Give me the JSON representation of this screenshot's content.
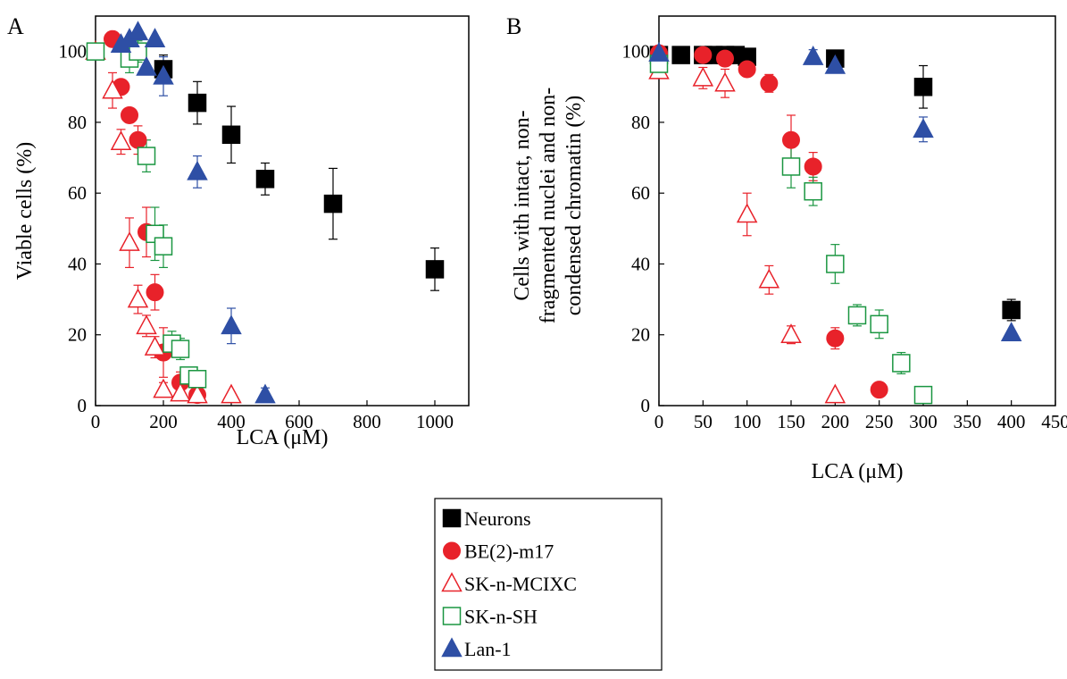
{
  "chart_data": [
    {
      "type": "scatter",
      "panel_label": "A",
      "xlabel": "LCA (μM)",
      "ylabel": "Viable cells (%)",
      "xlim": [
        0,
        1100
      ],
      "ylim": [
        0,
        110
      ],
      "xticks": [
        0,
        200,
        400,
        600,
        800,
        1000
      ],
      "yticks": [
        0,
        20,
        40,
        60,
        80,
        100
      ],
      "grid": false,
      "series": [
        {
          "key": "neurons",
          "marker": "square-filled",
          "color": "#000000",
          "points": [
            [
              200,
              95,
              4
            ],
            [
              300,
              85.5,
              6
            ],
            [
              400,
              76.5,
              8
            ],
            [
              500,
              64,
              4.5
            ],
            [
              700,
              57,
              10
            ],
            [
              1000,
              38.5,
              6
            ]
          ]
        },
        {
          "key": "be2m17",
          "marker": "circle-filled",
          "color": "#e8222a",
          "points": [
            [
              50,
              103.5,
              0
            ],
            [
              75,
              90,
              0
            ],
            [
              100,
              82,
              0
            ],
            [
              125,
              75,
              4
            ],
            [
              150,
              49,
              7
            ],
            [
              175,
              32,
              5
            ],
            [
              200,
              15,
              7
            ],
            [
              250,
              6.5,
              3
            ],
            [
              300,
              3,
              1
            ]
          ]
        },
        {
          "key": "sknmcixc",
          "marker": "triangle-open",
          "color": "#e8222a",
          "points": [
            [
              0,
              100,
              0
            ],
            [
              50,
              89,
              5
            ],
            [
              75,
              74.5,
              3.5
            ],
            [
              100,
              46,
              7
            ],
            [
              125,
              30,
              4
            ],
            [
              150,
              22.5,
              3
            ],
            [
              175,
              16.5,
              3
            ],
            [
              200,
              4.5,
              2
            ],
            [
              250,
              3.5,
              1
            ],
            [
              300,
              3,
              1
            ],
            [
              400,
              3,
              0
            ]
          ]
        },
        {
          "key": "sknsh",
          "marker": "square-open",
          "color": "#1a9641",
          "points": [
            [
              0,
              100,
              0
            ],
            [
              100,
              98,
              4
            ],
            [
              125,
              100,
              3
            ],
            [
              150,
              70.5,
              4.5
            ],
            [
              175,
              48.5,
              7.5
            ],
            [
              200,
              45,
              6
            ],
            [
              225,
              17.5,
              3.5
            ],
            [
              250,
              16,
              3
            ],
            [
              275,
              8.5,
              2
            ],
            [
              300,
              7.5,
              2
            ]
          ]
        },
        {
          "key": "lan1",
          "marker": "triangle-filled",
          "color": "#2e4fa5",
          "points": [
            [
              75,
              102,
              0
            ],
            [
              100,
              103.5,
              0
            ],
            [
              125,
              105.5,
              0
            ],
            [
              150,
              95.5,
              0
            ],
            [
              175,
              103.5,
              0
            ],
            [
              200,
              93,
              5.5
            ],
            [
              300,
              66,
              4.5
            ],
            [
              400,
              22.5,
              5
            ],
            [
              500,
              3,
              2
            ]
          ]
        }
      ]
    },
    {
      "type": "scatter",
      "panel_label": "B",
      "xlabel": "LCA (μM)",
      "ylabel_lines": [
        "Cells with intact, non-",
        "fragmented nuclei and non-",
        "condensed chromatin (%)"
      ],
      "xlim": [
        0,
        450
      ],
      "ylim": [
        0,
        110
      ],
      "xticks": [
        0,
        50,
        100,
        150,
        200,
        250,
        300,
        350,
        400,
        450
      ],
      "yticks": [
        0,
        20,
        40,
        60,
        80,
        100
      ],
      "grid": false,
      "series": [
        {
          "key": "neurons",
          "marker": "square-filled",
          "color": "#000000",
          "points": [
            [
              0,
              99,
              0
            ],
            [
              25,
              99,
              0
            ],
            [
              50,
              99,
              0
            ],
            [
              62,
              99,
              0
            ],
            [
              75,
              99,
              0
            ],
            [
              87,
              99,
              0
            ],
            [
              100,
              98.5,
              0
            ],
            [
              200,
              98,
              0
            ],
            [
              300,
              90,
              6
            ],
            [
              400,
              27,
              3
            ]
          ]
        },
        {
          "key": "be2m17",
          "marker": "circle-filled",
          "color": "#e8222a",
          "points": [
            [
              0,
              99.5,
              0
            ],
            [
              50,
              99,
              0
            ],
            [
              75,
              98,
              0
            ],
            [
              100,
              95,
              0
            ],
            [
              125,
              91,
              2.5
            ],
            [
              150,
              75,
              7
            ],
            [
              175,
              67.5,
              4
            ],
            [
              200,
              19,
              3
            ],
            [
              250,
              4.5,
              0
            ]
          ]
        },
        {
          "key": "sknmcixc",
          "marker": "triangle-open",
          "color": "#e8222a",
          "points": [
            [
              0,
              94.5,
              0
            ],
            [
              50,
              92.5,
              3
            ],
            [
              75,
              91,
              4
            ],
            [
              100,
              54,
              6
            ],
            [
              125,
              35.5,
              4
            ],
            [
              150,
              20,
              2.5
            ],
            [
              200,
              3,
              0
            ]
          ]
        },
        {
          "key": "sknsh",
          "marker": "square-open",
          "color": "#1a9641",
          "points": [
            [
              0,
              96.5,
              0
            ],
            [
              150,
              67.5,
              6
            ],
            [
              175,
              60.5,
              4
            ],
            [
              200,
              40,
              5.5
            ],
            [
              225,
              25.5,
              3
            ],
            [
              250,
              23,
              4
            ],
            [
              275,
              12,
              3
            ],
            [
              300,
              3,
              0
            ]
          ]
        },
        {
          "key": "lan1",
          "marker": "triangle-filled",
          "color": "#2e4fa5",
          "points": [
            [
              0,
              99.5,
              0
            ],
            [
              175,
              98.5,
              2
            ],
            [
              200,
              96,
              0
            ],
            [
              300,
              78,
              3.5
            ],
            [
              400,
              20.5,
              0
            ]
          ]
        }
      ]
    }
  ],
  "legend": {
    "position": "bottom-center",
    "entries": [
      {
        "key": "neurons",
        "label": "Neurons"
      },
      {
        "key": "be2m17",
        "label": "BE(2)-m17"
      },
      {
        "key": "sknmcixc",
        "label": "SK-n-MCIXC"
      },
      {
        "key": "sknsh",
        "label": "SK-n-SH"
      },
      {
        "key": "lan1",
        "label": "Lan-1"
      }
    ]
  },
  "colors": {
    "neurons": "#000000",
    "be2m17": "#e8222a",
    "sknmcixc": "#e8222a",
    "sknsh": "#1a9641",
    "lan1": "#2e4fa5"
  }
}
